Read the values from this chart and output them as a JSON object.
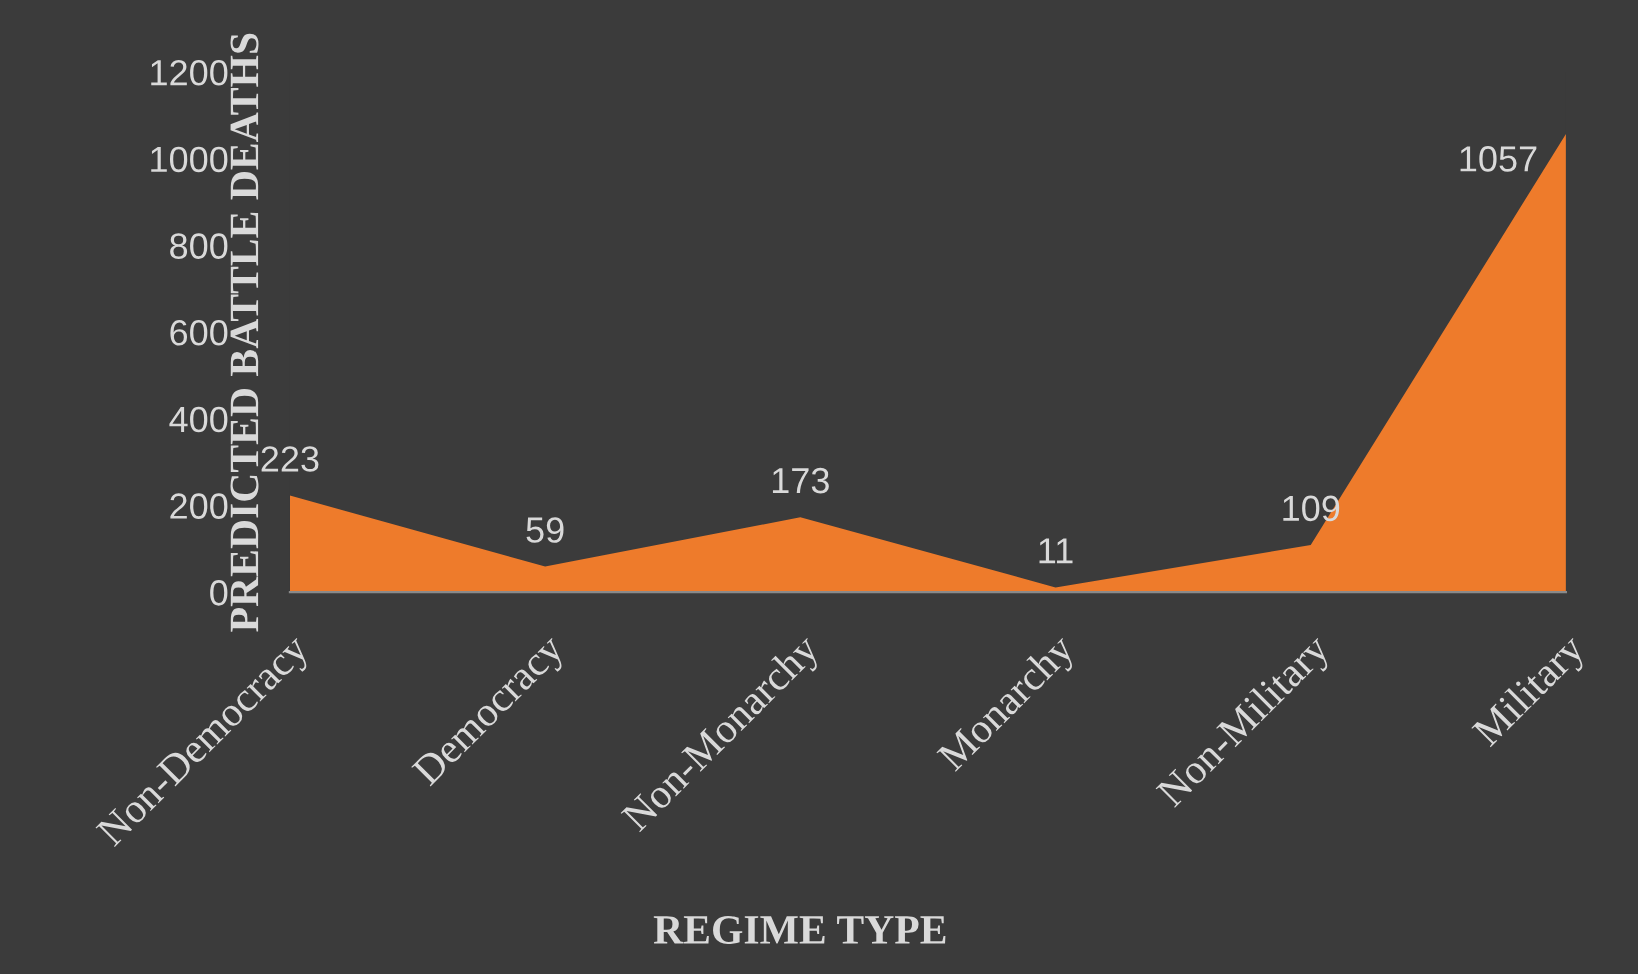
{
  "chart_data": {
    "type": "area",
    "xlabel": "REGIME TYPE",
    "ylabel": "PREDICTED BATTLE DEATHS",
    "categories": [
      "Non-Democracy",
      "Democracy",
      "Non-Monarchy",
      "Monarchy",
      "Non-Military",
      "Military"
    ],
    "values": [
      223,
      59,
      173,
      11,
      109,
      1057
    ],
    "color": "#ee7b2b",
    "ylim": [
      0,
      1200
    ],
    "yticks": [
      0,
      200,
      400,
      600,
      800,
      1000,
      1200
    ],
    "grid": false,
    "data_labels": true
  }
}
